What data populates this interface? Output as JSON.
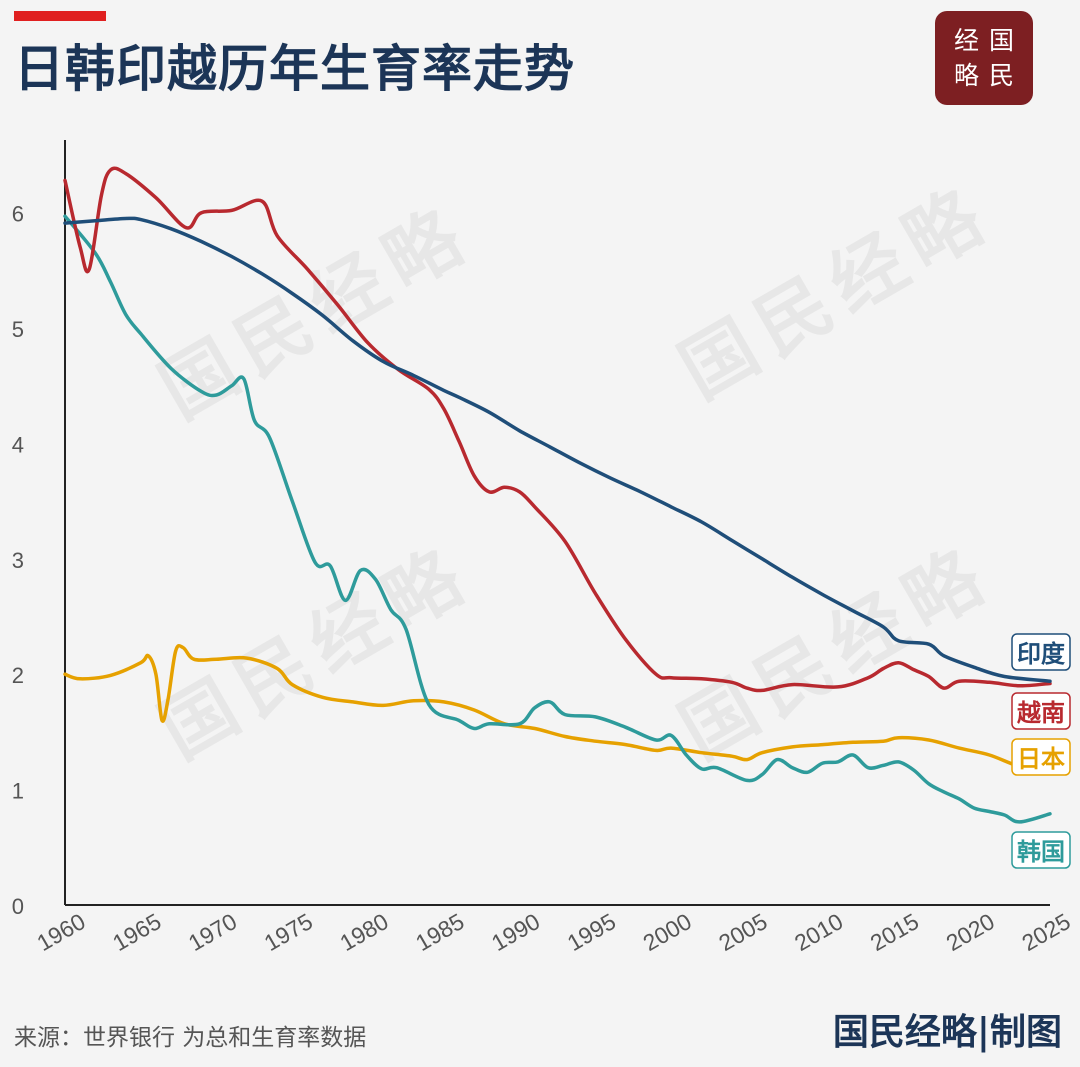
{
  "header": {
    "title": "日韩印越历年生育率走势"
  },
  "logo": {
    "c1": "经",
    "c2": "国",
    "c3": "略",
    "c4": "民"
  },
  "watermark": {
    "text": "国民经略"
  },
  "footer": {
    "source": "来源：世界银行  为总和生育率数据",
    "credit": "国民经略|制图"
  },
  "colors": {
    "title": "#1c3557",
    "accent": "#e02020",
    "logo_bg": "#7d1f22"
  },
  "chart_data": {
    "type": "line",
    "title": "日韩印越历年生育率走势",
    "xlabel": "",
    "ylabel": "",
    "xlim": [
      1960,
      2025
    ],
    "ylim": [
      0,
      6.5
    ],
    "x_ticks": [
      1960,
      1965,
      1970,
      1975,
      1980,
      1985,
      1990,
      1995,
      2000,
      2005,
      2010,
      2015,
      2020,
      2025
    ],
    "y_ticks": [
      0,
      1,
      2,
      3,
      4,
      5,
      6
    ],
    "grid": false,
    "legend": "end-of-line labels",
    "series": [
      {
        "name": "印度",
        "color": "#1f4e79",
        "points": [
          [
            1960,
            5.91
          ],
          [
            1962,
            5.93
          ],
          [
            1964,
            5.95
          ],
          [
            1965,
            5.94
          ],
          [
            1967,
            5.86
          ],
          [
            1969,
            5.75
          ],
          [
            1971,
            5.62
          ],
          [
            1973,
            5.47
          ],
          [
            1975,
            5.3
          ],
          [
            1977,
            5.11
          ],
          [
            1979,
            4.89
          ],
          [
            1981,
            4.71
          ],
          [
            1983,
            4.59
          ],
          [
            1985,
            4.46
          ],
          [
            1986,
            4.4
          ],
          [
            1988,
            4.27
          ],
          [
            1990,
            4.11
          ],
          [
            1992,
            3.97
          ],
          [
            1994,
            3.83
          ],
          [
            1996,
            3.7
          ],
          [
            1998,
            3.58
          ],
          [
            2000,
            3.45
          ],
          [
            2002,
            3.32
          ],
          [
            2004,
            3.16
          ],
          [
            2006,
            3.0
          ],
          [
            2008,
            2.84
          ],
          [
            2010,
            2.69
          ],
          [
            2012,
            2.55
          ],
          [
            2014,
            2.41
          ],
          [
            2015,
            2.29
          ],
          [
            2017,
            2.26
          ],
          [
            2018,
            2.16
          ],
          [
            2020,
            2.06
          ],
          [
            2022,
            1.98
          ],
          [
            2025,
            1.94
          ]
        ]
      },
      {
        "name": "越南",
        "color": "#b8292f",
        "points": [
          [
            1960,
            6.28
          ],
          [
            1961,
            5.7
          ],
          [
            1961.6,
            5.51
          ],
          [
            1962.4,
            6.15
          ],
          [
            1963,
            6.37
          ],
          [
            1964,
            6.34
          ],
          [
            1966,
            6.13
          ],
          [
            1968,
            5.87
          ],
          [
            1969,
            6.0
          ],
          [
            1971,
            6.02
          ],
          [
            1973,
            6.1
          ],
          [
            1974,
            5.8
          ],
          [
            1976,
            5.51
          ],
          [
            1978,
            5.2
          ],
          [
            1980,
            4.87
          ],
          [
            1982,
            4.64
          ],
          [
            1984,
            4.47
          ],
          [
            1985,
            4.3
          ],
          [
            1986,
            4.02
          ],
          [
            1987,
            3.72
          ],
          [
            1988,
            3.58
          ],
          [
            1989,
            3.62
          ],
          [
            1990,
            3.58
          ],
          [
            1991,
            3.45
          ],
          [
            1993,
            3.15
          ],
          [
            1995,
            2.7
          ],
          [
            1997,
            2.3
          ],
          [
            1999,
            2.0
          ],
          [
            2000,
            1.97
          ],
          [
            2002,
            1.96
          ],
          [
            2004,
            1.93
          ],
          [
            2005,
            1.88
          ],
          [
            2006,
            1.86
          ],
          [
            2008,
            1.91
          ],
          [
            2011,
            1.89
          ],
          [
            2013,
            1.97
          ],
          [
            2014,
            2.05
          ],
          [
            2015,
            2.1
          ],
          [
            2016,
            2.04
          ],
          [
            2017,
            1.98
          ],
          [
            2018,
            1.88
          ],
          [
            2019,
            1.94
          ],
          [
            2021,
            1.93
          ],
          [
            2023,
            1.9
          ],
          [
            2025,
            1.92
          ]
        ]
      },
      {
        "name": "日本",
        "color": "#e6a100",
        "points": [
          [
            1960,
            2.0
          ],
          [
            1961,
            1.96
          ],
          [
            1963,
            1.99
          ],
          [
            1965,
            2.1
          ],
          [
            1965.5,
            2.16
          ],
          [
            1966,
            2.0
          ],
          [
            1966.4,
            1.6
          ],
          [
            1966.8,
            1.78
          ],
          [
            1967.3,
            2.2
          ],
          [
            1967.8,
            2.23
          ],
          [
            1968.5,
            2.13
          ],
          [
            1970,
            2.13
          ],
          [
            1972,
            2.14
          ],
          [
            1974,
            2.05
          ],
          [
            1975,
            1.91
          ],
          [
            1977,
            1.8
          ],
          [
            1979,
            1.76
          ],
          [
            1981,
            1.73
          ],
          [
            1983,
            1.77
          ],
          [
            1985,
            1.76
          ],
          [
            1987,
            1.69
          ],
          [
            1989,
            1.57
          ],
          [
            1991,
            1.53
          ],
          [
            1993,
            1.46
          ],
          [
            1995,
            1.42
          ],
          [
            1997,
            1.39
          ],
          [
            1999,
            1.34
          ],
          [
            2000,
            1.36
          ],
          [
            2002,
            1.32
          ],
          [
            2004,
            1.29
          ],
          [
            2005,
            1.26
          ],
          [
            2006,
            1.32
          ],
          [
            2008,
            1.37
          ],
          [
            2010,
            1.39
          ],
          [
            2012,
            1.41
          ],
          [
            2014,
            1.42
          ],
          [
            2015,
            1.45
          ],
          [
            2017,
            1.43
          ],
          [
            2019,
            1.36
          ],
          [
            2021,
            1.3
          ],
          [
            2023,
            1.2
          ],
          [
            2025,
            1.15
          ]
        ]
      },
      {
        "name": "韩国",
        "color": "#2e9b9b",
        "points": [
          [
            1960,
            5.97
          ],
          [
            1962,
            5.65
          ],
          [
            1963,
            5.4
          ],
          [
            1964,
            5.12
          ],
          [
            1965,
            4.95
          ],
          [
            1967,
            4.65
          ],
          [
            1969,
            4.45
          ],
          [
            1970,
            4.42
          ],
          [
            1971,
            4.5
          ],
          [
            1971.8,
            4.56
          ],
          [
            1972.5,
            4.2
          ],
          [
            1973.5,
            4.05
          ],
          [
            1975,
            3.5
          ],
          [
            1976.5,
            2.97
          ],
          [
            1977.5,
            2.94
          ],
          [
            1978.5,
            2.64
          ],
          [
            1979.5,
            2.9
          ],
          [
            1980.5,
            2.82
          ],
          [
            1981.5,
            2.56
          ],
          [
            1982.5,
            2.39
          ],
          [
            1984,
            1.74
          ],
          [
            1986,
            1.6
          ],
          [
            1987,
            1.53
          ],
          [
            1988,
            1.57
          ],
          [
            1990,
            1.57
          ],
          [
            1991,
            1.71
          ],
          [
            1992,
            1.76
          ],
          [
            1993,
            1.65
          ],
          [
            1995,
            1.63
          ],
          [
            1997,
            1.54
          ],
          [
            1999,
            1.43
          ],
          [
            2000,
            1.47
          ],
          [
            2001,
            1.3
          ],
          [
            2002,
            1.18
          ],
          [
            2003,
            1.19
          ],
          [
            2005,
            1.08
          ],
          [
            2006,
            1.13
          ],
          [
            2007,
            1.26
          ],
          [
            2008,
            1.19
          ],
          [
            2009,
            1.15
          ],
          [
            2010,
            1.23
          ],
          [
            2011,
            1.24
          ],
          [
            2012,
            1.3
          ],
          [
            2013,
            1.19
          ],
          [
            2014,
            1.21
          ],
          [
            2015,
            1.24
          ],
          [
            2016,
            1.17
          ],
          [
            2017,
            1.05
          ],
          [
            2018,
            0.98
          ],
          [
            2019,
            0.92
          ],
          [
            2020,
            0.84
          ],
          [
            2021,
            0.81
          ],
          [
            2022,
            0.78
          ],
          [
            2023,
            0.72
          ],
          [
            2025,
            0.79
          ]
        ]
      }
    ],
    "end_labels": [
      "印度",
      "越南",
      "日本",
      "韩国"
    ]
  }
}
